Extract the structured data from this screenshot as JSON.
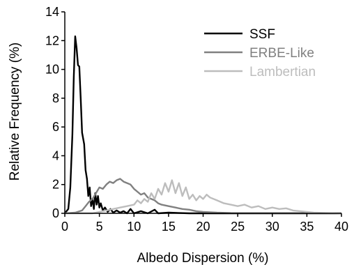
{
  "chart_data": {
    "type": "line",
    "title": "",
    "xlabel": "Albedo Dispersion (%)",
    "ylabel": "Relative Frequency (%)",
    "xlim": [
      0,
      40
    ],
    "ylim": [
      0,
      14
    ],
    "xticks": [
      0,
      5,
      10,
      15,
      20,
      25,
      30,
      35,
      40
    ],
    "yticks": [
      0,
      2,
      4,
      6,
      8,
      10,
      12,
      14
    ],
    "grid": false,
    "legend_position": "top-right",
    "series": [
      {
        "name": "SSF",
        "color": "#000000",
        "points": [
          [
            0.0,
            0.0
          ],
          [
            0.5,
            0.3
          ],
          [
            0.8,
            1.8
          ],
          [
            1.1,
            5.5
          ],
          [
            1.3,
            9.5
          ],
          [
            1.5,
            12.3
          ],
          [
            1.7,
            11.5
          ],
          [
            1.9,
            10.3
          ],
          [
            2.1,
            10.2
          ],
          [
            2.3,
            8.0
          ],
          [
            2.5,
            5.6
          ],
          [
            2.8,
            4.8
          ],
          [
            3.0,
            3.0
          ],
          [
            3.2,
            2.4
          ],
          [
            3.4,
            1.2
          ],
          [
            3.6,
            1.8
          ],
          [
            3.8,
            0.5
          ],
          [
            4.0,
            1.0
          ],
          [
            4.2,
            0.3
          ],
          [
            4.4,
            1.4
          ],
          [
            4.6,
            0.6
          ],
          [
            4.8,
            1.2
          ],
          [
            5.0,
            0.4
          ],
          [
            5.2,
            0.7
          ],
          [
            5.5,
            0.2
          ],
          [
            5.8,
            0.4
          ],
          [
            6.2,
            0.1
          ],
          [
            6.6,
            0.3
          ],
          [
            7.0,
            0.05
          ],
          [
            7.5,
            0.2
          ],
          [
            8.0,
            0.05
          ],
          [
            8.5,
            0.15
          ],
          [
            9.0,
            0.0
          ],
          [
            9.5,
            0.3
          ],
          [
            10.0,
            0.0
          ],
          [
            11.0,
            0.15
          ],
          [
            12.0,
            0.0
          ],
          [
            13.0,
            0.25
          ],
          [
            13.5,
            0.0
          ],
          [
            15.0,
            0.05
          ],
          [
            18.0,
            0.0
          ],
          [
            40.0,
            0.0
          ]
        ]
      },
      {
        "name": "ERBE-Like",
        "color": "#808080",
        "points": [
          [
            0.0,
            0.0
          ],
          [
            1.5,
            0.05
          ],
          [
            2.5,
            0.2
          ],
          [
            3.0,
            0.5
          ],
          [
            3.5,
            0.8
          ],
          [
            4.0,
            1.0
          ],
          [
            4.5,
            1.4
          ],
          [
            5.0,
            1.8
          ],
          [
            5.5,
            1.7
          ],
          [
            6.0,
            2.0
          ],
          [
            6.5,
            2.2
          ],
          [
            7.0,
            2.1
          ],
          [
            7.5,
            2.3
          ],
          [
            8.0,
            2.4
          ],
          [
            8.5,
            2.2
          ],
          [
            9.0,
            2.1
          ],
          [
            9.5,
            2.0
          ],
          [
            10.0,
            1.7
          ],
          [
            10.5,
            1.5
          ],
          [
            11.0,
            1.3
          ],
          [
            11.5,
            1.4
          ],
          [
            12.0,
            1.1
          ],
          [
            12.5,
            1.0
          ],
          [
            13.0,
            0.9
          ],
          [
            13.5,
            0.7
          ],
          [
            14.0,
            0.6
          ],
          [
            15.0,
            0.5
          ],
          [
            16.0,
            0.4
          ],
          [
            17.0,
            0.3
          ],
          [
            18.0,
            0.25
          ],
          [
            19.0,
            0.15
          ],
          [
            20.0,
            0.1
          ],
          [
            22.0,
            0.05
          ],
          [
            24.0,
            0.02
          ],
          [
            40.0,
            0.0
          ]
        ]
      },
      {
        "name": "Lambertian",
        "color": "#bdbdbd",
        "points": [
          [
            0.0,
            0.0
          ],
          [
            4.0,
            0.0
          ],
          [
            5.0,
            0.1
          ],
          [
            6.0,
            0.2
          ],
          [
            7.0,
            0.3
          ],
          [
            8.0,
            0.4
          ],
          [
            9.0,
            0.5
          ],
          [
            10.0,
            0.6
          ],
          [
            10.5,
            0.9
          ],
          [
            11.0,
            0.7
          ],
          [
            11.5,
            1.0
          ],
          [
            12.0,
            0.8
          ],
          [
            12.5,
            1.4
          ],
          [
            13.0,
            1.0
          ],
          [
            13.5,
            1.7
          ],
          [
            14.0,
            1.3
          ],
          [
            14.5,
            2.1
          ],
          [
            15.0,
            1.5
          ],
          [
            15.5,
            2.3
          ],
          [
            16.0,
            1.4
          ],
          [
            16.5,
            2.1
          ],
          [
            17.0,
            1.2
          ],
          [
            17.5,
            1.8
          ],
          [
            18.0,
            1.0
          ],
          [
            18.5,
            1.3
          ],
          [
            19.0,
            0.9
          ],
          [
            19.5,
            1.2
          ],
          [
            20.0,
            1.0
          ],
          [
            20.5,
            1.3
          ],
          [
            21.0,
            1.1
          ],
          [
            22.0,
            0.9
          ],
          [
            23.0,
            0.7
          ],
          [
            24.0,
            0.6
          ],
          [
            25.0,
            0.5
          ],
          [
            26.0,
            0.6
          ],
          [
            27.0,
            0.4
          ],
          [
            28.0,
            0.5
          ],
          [
            29.0,
            0.3
          ],
          [
            30.0,
            0.4
          ],
          [
            31.0,
            0.3
          ],
          [
            32.0,
            0.35
          ],
          [
            33.0,
            0.2
          ],
          [
            34.0,
            0.15
          ],
          [
            35.0,
            0.1
          ],
          [
            36.0,
            0.05
          ],
          [
            38.0,
            0.02
          ],
          [
            40.0,
            0.0
          ]
        ]
      }
    ]
  }
}
